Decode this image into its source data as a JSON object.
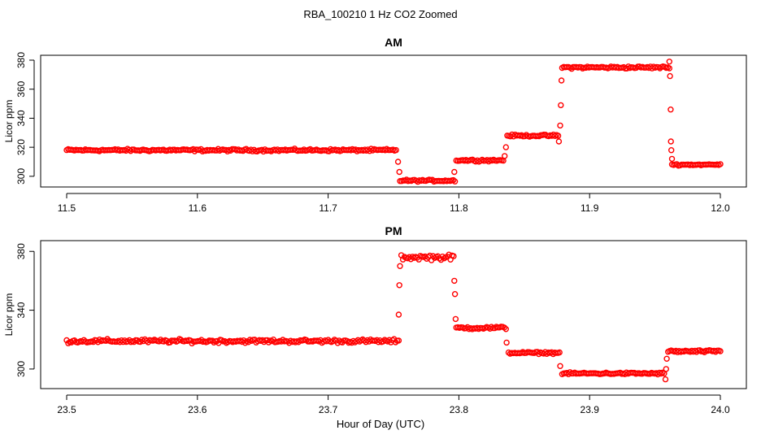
{
  "page": {
    "title": "RBA_100210  1 Hz CO2 Zoomed",
    "xlabel": "Hour of Day (UTC)"
  },
  "colors": {
    "points": "#ff0000",
    "axis": "#000000",
    "background": "#ffffff"
  },
  "chart_data": [
    {
      "type": "scatter",
      "title": "AM",
      "xlabel": "",
      "ylabel": "Licor ppm",
      "xlim": [
        11.5,
        12.0
      ],
      "ylim": [
        296,
        380
      ],
      "xticks": [
        11.5,
        11.6,
        11.7,
        11.8,
        11.9,
        12.0
      ],
      "xtick_labels": [
        "11.5",
        "11.6",
        "11.7",
        "11.8",
        "11.9",
        "12.0"
      ],
      "yticks": [
        300,
        320,
        340,
        360,
        380
      ],
      "ytick_labels": [
        "300",
        "320",
        "340",
        "360",
        "380"
      ],
      "grid": false,
      "series": [
        {
          "marker": "open-circle",
          "segments": [
            {
              "x_start": 11.5,
              "x_end": 11.752,
              "y": 318,
              "spread": 1.2
            },
            {
              "x_start": 11.755,
              "x_end": 11.797,
              "y": 297,
              "spread": 1.0
            },
            {
              "x_start": 11.798,
              "x_end": 11.834,
              "y": 311,
              "spread": 1.0
            },
            {
              "x_start": 11.837,
              "x_end": 11.876,
              "y": 328,
              "spread": 1.0
            },
            {
              "x_start": 11.879,
              "x_end": 11.961,
              "y": 375,
              "spread": 1.2
            },
            {
              "x_start": 11.963,
              "x_end": 12.0,
              "y": 308,
              "spread": 0.8
            }
          ],
          "transitions": [
            {
              "x": 11.7535,
              "y": 310
            },
            {
              "x": 11.7545,
              "y": 303
            },
            {
              "x": 11.7965,
              "y": 303
            },
            {
              "x": 11.835,
              "y": 314
            },
            {
              "x": 11.836,
              "y": 320
            },
            {
              "x": 11.8765,
              "y": 324
            },
            {
              "x": 11.8775,
              "y": 335
            },
            {
              "x": 11.878,
              "y": 349
            },
            {
              "x": 11.8785,
              "y": 366
            },
            {
              "x": 11.961,
              "y": 379
            },
            {
              "x": 11.9615,
              "y": 369
            },
            {
              "x": 11.962,
              "y": 346
            },
            {
              "x": 11.9622,
              "y": 324
            },
            {
              "x": 11.9625,
              "y": 318
            },
            {
              "x": 11.963,
              "y": 312
            }
          ]
        }
      ]
    },
    {
      "type": "scatter",
      "title": "PM",
      "xlabel": "",
      "ylabel": "Licor ppm",
      "xlim": [
        23.5,
        24.0
      ],
      "ylim": [
        290,
        384
      ],
      "xticks": [
        23.5,
        23.6,
        23.7,
        23.8,
        23.9,
        24.0
      ],
      "xtick_labels": [
        "23.5",
        "23.6",
        "23.7",
        "23.8",
        "23.9",
        "24.0"
      ],
      "yticks": [
        300,
        340,
        380
      ],
      "ytick_labels": [
        "300",
        "340",
        "380"
      ],
      "grid": false,
      "series": [
        {
          "marker": "open-circle",
          "segments": [
            {
              "x_start": 23.5,
              "x_end": 23.754,
              "y": 319,
              "spread": 1.8
            },
            {
              "x_start": 23.756,
              "x_end": 23.796,
              "y": 376,
              "spread": 2.5
            },
            {
              "x_start": 23.798,
              "x_end": 23.836,
              "y": 328,
              "spread": 1.5
            },
            {
              "x_start": 23.838,
              "x_end": 23.877,
              "y": 311,
              "spread": 1.0
            },
            {
              "x_start": 23.879,
              "x_end": 23.957,
              "y": 297,
              "spread": 1.0
            },
            {
              "x_start": 23.96,
              "x_end": 24.0,
              "y": 312,
              "spread": 1.2
            }
          ],
          "transitions": [
            {
              "x": 23.754,
              "y": 337
            },
            {
              "x": 23.7545,
              "y": 357
            },
            {
              "x": 23.755,
              "y": 370
            },
            {
              "x": 23.7965,
              "y": 360
            },
            {
              "x": 23.797,
              "y": 351
            },
            {
              "x": 23.7975,
              "y": 334
            },
            {
              "x": 23.8365,
              "y": 318
            },
            {
              "x": 23.8775,
              "y": 302
            },
            {
              "x": 23.958,
              "y": 293
            },
            {
              "x": 23.9585,
              "y": 300
            },
            {
              "x": 23.959,
              "y": 307
            }
          ]
        }
      ]
    }
  ]
}
